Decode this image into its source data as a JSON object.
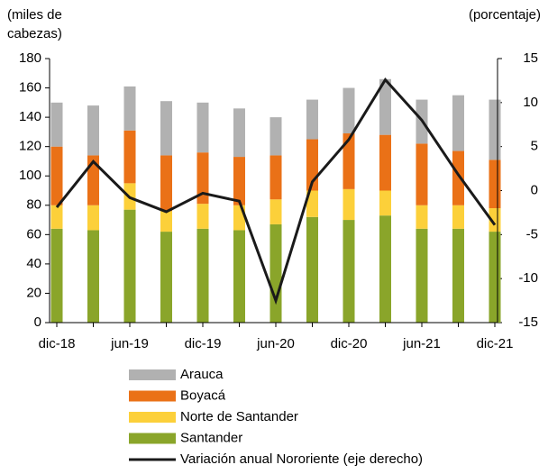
{
  "chart_data": {
    "type": "bar",
    "ylabel": [
      "(miles de",
      "cabezas)"
    ],
    "y2label": "(porcentaje)",
    "categories": [
      "dic-18",
      null,
      "jun-19",
      null,
      "dic-19",
      null,
      "jun-20",
      null,
      "dic-20",
      null,
      "jun-21",
      null,
      "dic-21"
    ],
    "stacked": true,
    "series": [
      {
        "name": "Santander",
        "color": "#8aa52a",
        "values": [
          64,
          63,
          77,
          62,
          64,
          63,
          67,
          72,
          70,
          73,
          64,
          64,
          62
        ]
      },
      {
        "name": "Norte de Santander",
        "color": "#fcd03a",
        "values": [
          16,
          17,
          18,
          14,
          17,
          17,
          17,
          18,
          21,
          17,
          16,
          16,
          16
        ]
      },
      {
        "name": "Boyacá",
        "color": "#ea7117",
        "values": [
          40,
          34,
          36,
          38,
          35,
          33,
          30,
          35,
          38,
          38,
          42,
          37,
          33
        ]
      },
      {
        "name": "Arauca",
        "color": "#b1b1b1",
        "values": [
          30,
          34,
          30,
          37,
          34,
          33,
          26,
          27,
          31,
          38,
          30,
          38,
          41
        ]
      },
      {
        "name": "Variación anual Nororiente (eje derecho)",
        "color": "#1a1a1a",
        "type": "line",
        "axis": "y2",
        "values": [
          -1.9,
          3.3,
          -0.8,
          -2.4,
          -0.3,
          -1.2,
          -12.5,
          1.0,
          5.8,
          12.6,
          8.0,
          1.8,
          -3.9
        ]
      }
    ],
    "legend_order": [
      3,
      2,
      1,
      0,
      4
    ],
    "ylim": [
      0,
      180
    ],
    "yticks": [
      0,
      20,
      40,
      60,
      80,
      100,
      120,
      140,
      160,
      180
    ],
    "y2lim": [
      -15,
      15
    ],
    "y2ticks": [
      -15,
      -10,
      -5,
      0,
      5,
      10,
      15
    ]
  }
}
